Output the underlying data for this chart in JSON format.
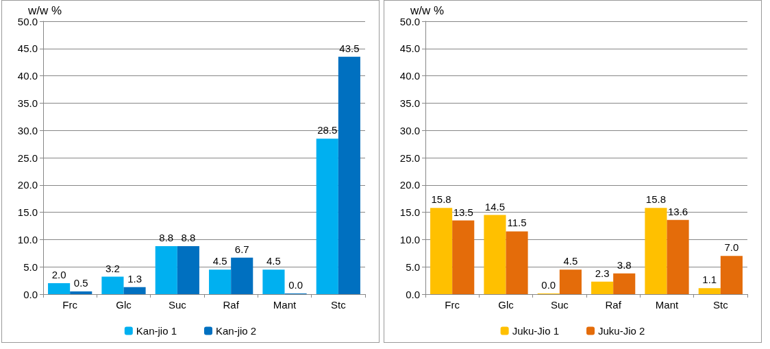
{
  "chart_data": [
    {
      "type": "bar",
      "ylabel": "w/w %",
      "categories": [
        "Frc",
        "Glc",
        "Suc",
        "Raf",
        "Mant",
        "Stc"
      ],
      "series": [
        {
          "name": "Kan-jio 1",
          "color": "#00b0f0",
          "values": [
            2.0,
            3.2,
            8.8,
            4.5,
            4.5,
            28.5
          ],
          "value_labels": [
            "2.0",
            "3.2",
            "8.8",
            "4.5",
            "4.5",
            "28.5"
          ]
        },
        {
          "name": "Kan-jio 2",
          "color": "#0070c0",
          "values": [
            0.5,
            1.3,
            8.8,
            6.7,
            0.0,
            43.5
          ],
          "value_labels": [
            "0.5",
            "1.3",
            "8.8",
            "6.7",
            "0.0",
            "43.5"
          ]
        }
      ],
      "ylim": [
        0,
        50
      ],
      "yticks": [
        {
          "value": 0,
          "label": "0.0"
        },
        {
          "value": 5,
          "label": "5.0"
        },
        {
          "value": 10,
          "label": "10.0"
        },
        {
          "value": 15,
          "label": "15.0"
        },
        {
          "value": 20,
          "label": "20.0"
        },
        {
          "value": 25,
          "label": "25.0"
        },
        {
          "value": 30,
          "label": "30.0"
        },
        {
          "value": 35,
          "label": "35.0"
        },
        {
          "value": 40,
          "label": "40.0"
        },
        {
          "value": 45,
          "label": "45.0"
        },
        {
          "value": 50,
          "label": "50.0"
        }
      ],
      "grid": "y",
      "legend": "bottom"
    },
    {
      "type": "bar",
      "ylabel": "w/w %",
      "categories": [
        "Frc",
        "Glc",
        "Suc",
        "Raf",
        "Mant",
        "Stc"
      ],
      "series": [
        {
          "name": "Juku-Jio 1",
          "color": "#ffc000",
          "values": [
            15.8,
            14.5,
            0.0,
            2.3,
            15.8,
            1.1
          ],
          "value_labels": [
            "15.8",
            "14.5",
            "0.0",
            "2.3",
            "15.8",
            "1.1"
          ]
        },
        {
          "name": "Juku-Jio 2",
          "color": "#e46c0a",
          "values": [
            13.5,
            11.5,
            4.5,
            3.8,
            13.6,
            7.0
          ],
          "value_labels": [
            "13.5",
            "11.5",
            "4.5",
            "3.8",
            "13.6",
            "7.0"
          ]
        }
      ],
      "ylim": [
        0,
        50
      ],
      "yticks": [
        {
          "value": 0,
          "label": "0.0"
        },
        {
          "value": 5,
          "label": "5.0"
        },
        {
          "value": 10,
          "label": "10.0"
        },
        {
          "value": 15,
          "label": "15.0"
        },
        {
          "value": 20,
          "label": "20.0"
        },
        {
          "value": 25,
          "label": "25.0"
        },
        {
          "value": 30,
          "label": "30.0"
        },
        {
          "value": 35,
          "label": "35.0"
        },
        {
          "value": 40,
          "label": "40.0"
        },
        {
          "value": 45,
          "label": "45.0"
        },
        {
          "value": 50,
          "label": "50.0"
        }
      ],
      "grid": "y",
      "legend": "bottom"
    }
  ]
}
